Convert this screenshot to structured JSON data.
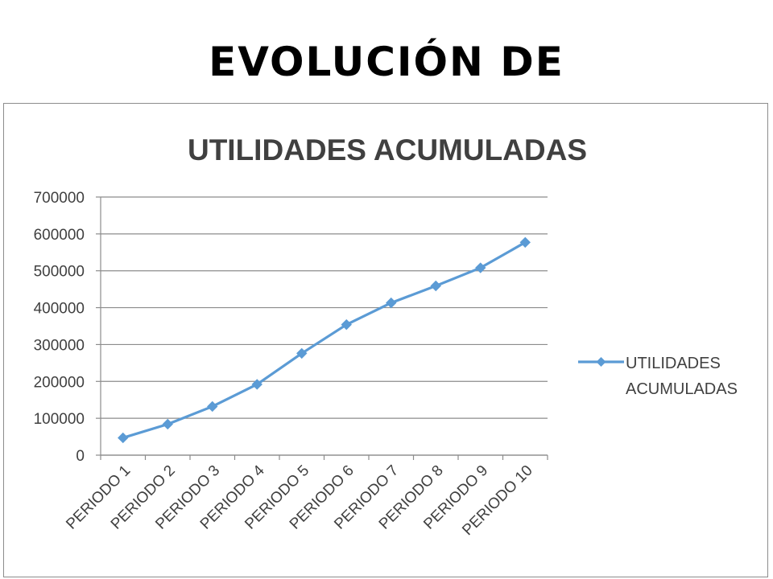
{
  "slide": {
    "title": "EVOLUCIÓN DE"
  },
  "colors": {
    "series": "#5b9bd5",
    "grid": "#8c8c8c",
    "text": "#404040"
  },
  "chart_data": {
    "type": "line",
    "title": "UTILIDADES ACUMULADAS",
    "xlabel": "",
    "ylabel": "",
    "categories": [
      "PERIODO 1",
      "PERIODO 2",
      "PERIODO 3",
      "PERIODO 4",
      "PERIODO 5",
      "PERIODO 6",
      "PERIODO 7",
      "PERIODO 8",
      "PERIODO 9",
      "PERIODO 10"
    ],
    "series": [
      {
        "name": "UTILIDADES ACUMULADAS",
        "legend_lines": [
          "UTILIDADES",
          "ACUMULADAS"
        ],
        "values": [
          47000,
          84000,
          132000,
          192000,
          276000,
          354000,
          413000,
          459000,
          508000,
          577000
        ]
      }
    ],
    "ylim": [
      0,
      700000
    ],
    "yticks": [
      "0",
      "100000",
      "200000",
      "300000",
      "400000",
      "500000",
      "600000",
      "700000"
    ],
    "grid": true,
    "legend_position": "right",
    "marker": "diamond"
  }
}
